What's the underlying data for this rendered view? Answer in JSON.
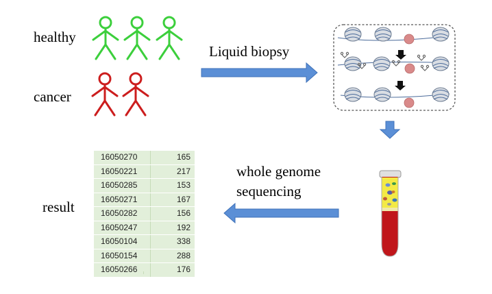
{
  "labels": {
    "healthy": "healthy",
    "cancer": "cancer",
    "liquid_biopsy": "Liquid biopsy",
    "wgs_line1": "whole genome",
    "wgs_line2": "sequencing",
    "result": "result"
  },
  "figures": {
    "healthy_count": 3,
    "cancer_count": 2,
    "healthy_color": "#3ccf3c",
    "cancer_color": "#cc1d1d"
  },
  "colors": {
    "arrow": "#5b8fd6",
    "arrow_edge": "#3f72b8",
    "table_bg": "#e2efda",
    "tube_liquid": "#c0161b",
    "tube_top": "#f3ea45"
  },
  "table": {
    "rows": [
      [
        "16050270",
        "165"
      ],
      [
        "16050221",
        "217"
      ],
      [
        "16050285",
        "153"
      ],
      [
        "16050271",
        "167"
      ],
      [
        "16050282",
        "156"
      ],
      [
        "16050247",
        "192"
      ],
      [
        "16050104",
        "338"
      ],
      [
        "16050154",
        "288"
      ],
      [
        "16050266",
        "176"
      ]
    ]
  }
}
